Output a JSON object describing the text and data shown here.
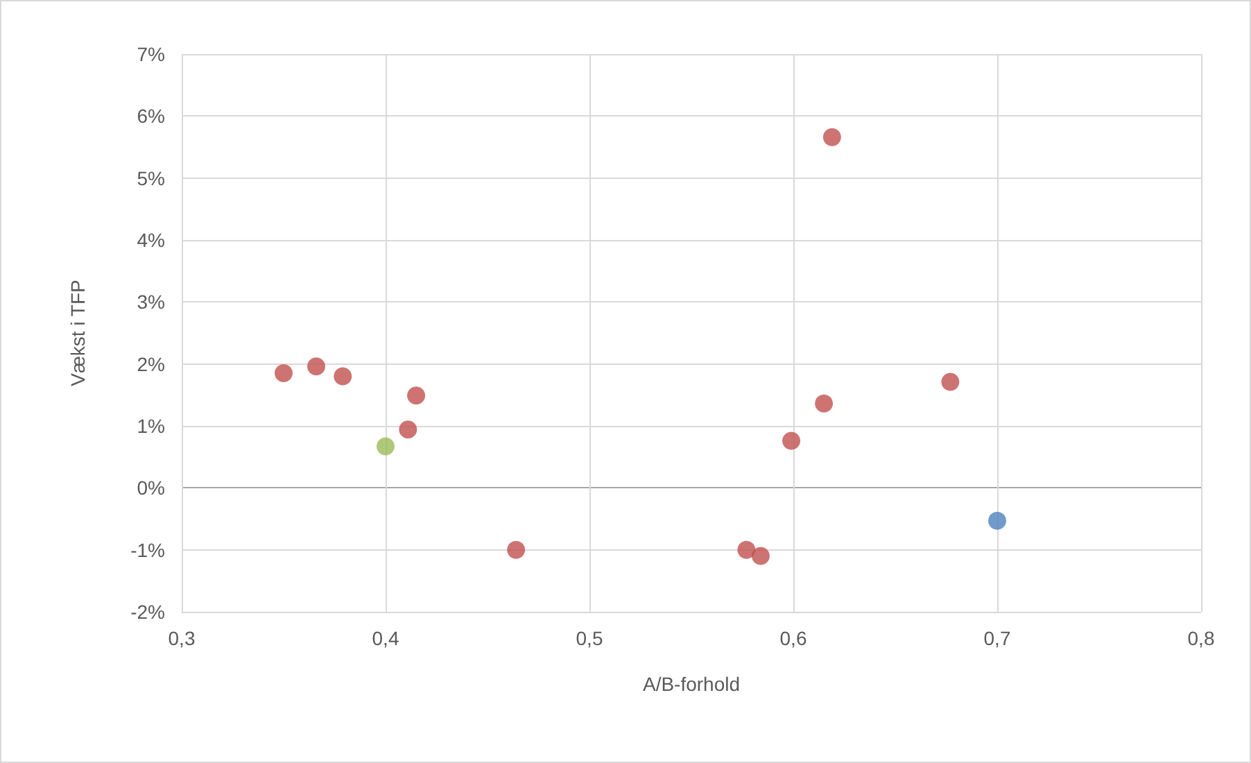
{
  "chart_data": {
    "type": "scatter",
    "xlabel": "A/B-forhold",
    "ylabel": "Vækst i TFP",
    "grid": true,
    "marker": "circle",
    "xlim": [
      0.3,
      0.8
    ],
    "xticks": [
      {
        "value": 0.3,
        "label": "0,3"
      },
      {
        "value": 0.4,
        "label": "0,4"
      },
      {
        "value": 0.5,
        "label": "0,5"
      },
      {
        "value": 0.6,
        "label": "0,6"
      },
      {
        "value": 0.7,
        "label": "0,7"
      },
      {
        "value": 0.8,
        "label": "0,8"
      }
    ],
    "ylim": [
      -2,
      7
    ],
    "yticks": [
      {
        "value": -2,
        "label": "-2%"
      },
      {
        "value": -1,
        "label": "-1%"
      },
      {
        "value": 0,
        "label": "0%"
      },
      {
        "value": 1,
        "label": "1%"
      },
      {
        "value": 2,
        "label": "2%"
      },
      {
        "value": 3,
        "label": "3%"
      },
      {
        "value": 4,
        "label": "4%"
      },
      {
        "value": 5,
        "label": "5%"
      },
      {
        "value": 6,
        "label": "6%"
      },
      {
        "value": 7,
        "label": "7%"
      }
    ],
    "series": [
      {
        "color": "#c0504d",
        "x": [
          0.35,
          0.366,
          0.379,
          0.411,
          0.415,
          0.464,
          0.577,
          0.584,
          0.599,
          0.615,
          0.619,
          0.677
        ],
        "values": [
          1.85,
          1.96,
          1.8,
          0.94,
          1.49,
          -1.0,
          -1.0,
          -1.1,
          0.76,
          1.36,
          5.66,
          1.71
        ]
      },
      {
        "color": "#9bbb59",
        "x": [
          0.4
        ],
        "values": [
          0.67
        ]
      },
      {
        "color": "#4f81bd",
        "x": [
          0.7
        ],
        "values": [
          -0.53
        ]
      }
    ]
  }
}
